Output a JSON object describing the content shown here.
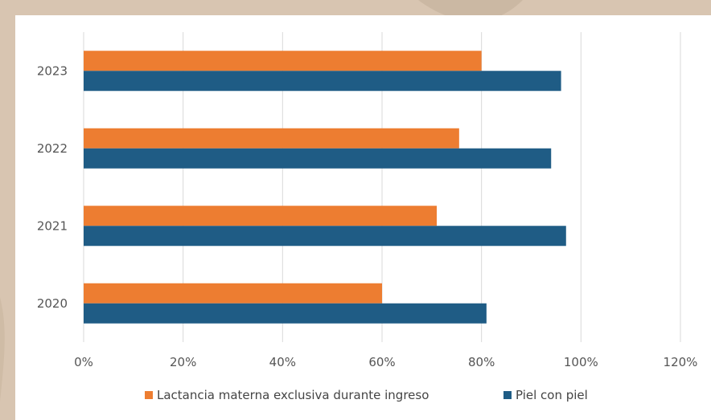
{
  "chart_data": {
    "type": "bar",
    "orientation": "horizontal",
    "categories": [
      "2020",
      "2021",
      "2022",
      "2023"
    ],
    "series": [
      {
        "name": "Lactancia materna exclusiva durante ingreso",
        "color": "#ed7d31",
        "values": [
          0.6,
          0.71,
          0.755,
          0.8
        ]
      },
      {
        "name": "Piel con piel",
        "color": "#1f5c85",
        "values": [
          0.81,
          0.97,
          0.94,
          0.96
        ]
      }
    ],
    "xlim": [
      0,
      1.2
    ],
    "xticks": [
      "0%",
      "20%",
      "40%",
      "60%",
      "80%",
      "100%",
      "120%"
    ],
    "grid": "vertical",
    "legend_position": "bottom"
  }
}
